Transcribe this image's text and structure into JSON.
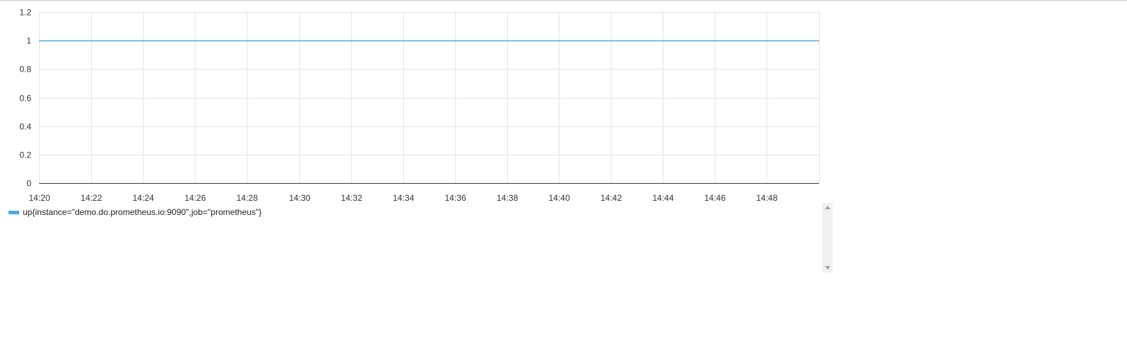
{
  "chart_data": {
    "type": "line",
    "title": "",
    "xlabel": "",
    "ylabel": "",
    "x_tick_labels": [
      "14:20",
      "14:22",
      "14:24",
      "14:26",
      "14:28",
      "14:30",
      "14:32",
      "14:34",
      "14:36",
      "14:38",
      "14:40",
      "14:42",
      "14:44",
      "14:46",
      "14:48"
    ],
    "y_tick_labels": [
      "0",
      "0.2",
      "0.4",
      "0.6",
      "0.8",
      "1",
      "1.2"
    ],
    "y_ticks": [
      0,
      0.2,
      0.4,
      0.6,
      0.8,
      1,
      1.2
    ],
    "xlim": [
      "14:20",
      "14:50"
    ],
    "ylim": [
      0,
      1.2
    ],
    "grid": true,
    "legend_position": "bottom-left",
    "series": [
      {
        "name": "up{instance=\"demo.do.prometheus.io:9090\",job=\"prometheus\"}",
        "color": "#4aa9ea",
        "x": [
          "14:20",
          "14:50"
        ],
        "values": [
          1,
          1
        ]
      }
    ]
  },
  "legend": {
    "items": [
      {
        "label": "up{instance=\"demo.do.prometheus.io:9090\",job=\"prometheus\"}",
        "color": "#4aa9ea"
      }
    ]
  },
  "colors": {
    "grid": "#e4e4e4",
    "axis": "#2c3e50",
    "series": "#4aa9ea",
    "scrollbar": "#f0f0f0"
  }
}
